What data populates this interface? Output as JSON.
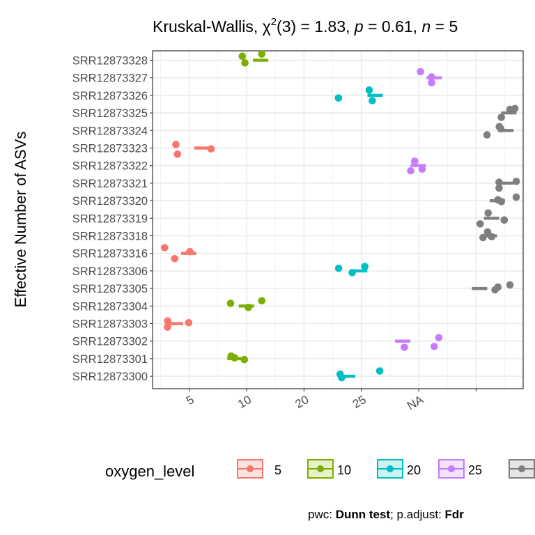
{
  "title": {
    "prefix": "Kruskal-Wallis, χ",
    "sup": "2",
    "middle1": "(3) = 1.83, ",
    "p_sym": "p",
    "middle2": " = 0.61, ",
    "n_sym": "n",
    "middle3": " = 5"
  },
  "caption": {
    "pwc_label": "pwc: ",
    "pwc_value": "Dunn test",
    "sep": "; p.adjust: ",
    "adjust_value": "Fdr"
  },
  "legend": {
    "title": "oxygen_level",
    "items": [
      {
        "label": "5",
        "color": "#F8766D",
        "fill": "#fde2df"
      },
      {
        "label": "10",
        "color": "#7CAE00",
        "fill": "#e7f0cc"
      },
      {
        "label": "20",
        "color": "#00BFC4",
        "fill": "#ccf2f3"
      },
      {
        "label": "25",
        "color": "#C77CFF",
        "fill": "#f2e3ff"
      },
      {
        "label": "",
        "color": "#7F7F7F",
        "fill": "#e5e5e5"
      }
    ]
  },
  "chart_data": {
    "type": "scatter",
    "ylabel": "Effective Number of ASVs",
    "xlabel": "",
    "x_tick_labels": [
      "5",
      "10",
      "20",
      "25",
      "NA"
    ],
    "categories": [
      "SRR12873328",
      "SRR12873327",
      "SRR12873326",
      "SRR12873325",
      "SRR12873324",
      "SRR12873323",
      "SRR12873322",
      "SRR12873321",
      "SRR12873320",
      "SRR12873319",
      "SRR12873318",
      "SRR12873316",
      "SRR12873306",
      "SRR12873305",
      "SRR12873304",
      "SRR12873303",
      "SRR12873302",
      "SRR12873301",
      "SRR12873300"
    ],
    "grid": true,
    "series": [
      {
        "name": "5",
        "color": "#F8766D",
        "rows": [
          {
            "sample": "SRR12873323",
            "group": "5",
            "points": [
              [
                3.83,
                -0.2
              ],
              [
                3.97,
                0.35
              ],
              [
                6.9,
                0.05
              ]
            ],
            "median": 6.1
          },
          {
            "sample": "SRR12873316",
            "group": "5",
            "points": [
              [
                3.73,
                0.3
              ],
              [
                2.85,
                -0.32
              ],
              [
                5.05,
                -0.1
              ]
            ],
            "median": 4.95
          },
          {
            "sample": "SRR12873303",
            "group": "5",
            "points": [
              [
                3.1,
                0.2
              ],
              [
                3.12,
                -0.15
              ],
              [
                4.95,
                -0.05
              ]
            ],
            "median": 3.8
          }
        ]
      },
      {
        "name": "10",
        "color": "#7CAE00",
        "rows": [
          {
            "sample": "SRR12873328",
            "group": "10",
            "points": [
              [
                9.85,
                0.15
              ],
              [
                9.62,
                -0.23
              ],
              [
                11.32,
                -0.35
              ]
            ],
            "median": 11.22
          },
          {
            "sample": "SRR12873304",
            "group": "10",
            "points": [
              [
                8.6,
                -0.15
              ],
              [
                10.15,
                0.08
              ],
              [
                11.32,
                -0.3
              ]
            ],
            "median": 9.98
          },
          {
            "sample": "SRR12873301",
            "group": "10",
            "points": [
              [
                9.8,
                0.05
              ],
              [
                8.65,
                -0.15
              ],
              [
                8.95,
                -0.05
              ]
            ],
            "median": 8.98
          }
        ]
      },
      {
        "name": "20",
        "color": "#00BFC4",
        "rows": [
          {
            "sample": "SRR12873326",
            "group": "20",
            "points": [
              [
                18.0,
                0.15
              ],
              [
                20.68,
                -0.3
              ],
              [
                20.95,
                0.3
              ]
            ],
            "median": 21.2
          },
          {
            "sample": "SRR12873306",
            "group": "20",
            "points": [
              [
                19.2,
                0.1
              ],
              [
                20.3,
                -0.25
              ],
              [
                18.02,
                -0.15
              ]
            ],
            "median": 19.85
          },
          {
            "sample": "SRR12873300",
            "group": "20",
            "points": [
              [
                18.28,
                0.08
              ],
              [
                18.15,
                -0.12
              ],
              [
                21.6,
                -0.3
              ]
            ],
            "median": 18.8
          }
        ]
      },
      {
        "name": "25",
        "color": "#C77CFF",
        "rows": [
          {
            "sample": "SRR12873327",
            "group": "25",
            "points": [
              [
                26.12,
                0.28
              ],
              [
                26.12,
                -0.05
              ],
              [
                25.15,
                -0.35
              ]
            ],
            "median": 26.35
          },
          {
            "sample": "SRR12873322",
            "group": "25",
            "points": [
              [
                24.3,
                0.3
              ],
              [
                25.3,
                0.2
              ],
              [
                24.65,
                -0.25
              ]
            ],
            "median": 24.95
          },
          {
            "sample": "SRR12873302",
            "group": "25",
            "points": [
              [
                23.75,
                0.35
              ],
              [
                26.35,
                0.3
              ],
              [
                26.75,
                -0.2
              ]
            ],
            "median": 23.6
          }
        ]
      },
      {
        "name": "NA",
        "color": "#7F7F7F",
        "rows": [
          {
            "sample": "SRR12873325",
            "group": "NA",
            "points": [
              [
                32.2,
                0.25
              ],
              [
                32.95,
                -0.2
              ],
              [
                33.38,
                -0.25
              ]
            ],
            "median": 32.85
          },
          {
            "sample": "SRR12873324",
            "group": "NA",
            "points": [
              [
                30.95,
                0.25
              ],
              [
                32.02,
                -0.22
              ],
              [
                32.15,
                -0.1
              ]
            ],
            "median": 32.6
          },
          {
            "sample": "SRR12873321",
            "group": "NA",
            "points": [
              [
                32.0,
                0.28
              ],
              [
                32.0,
                -0.05
              ],
              [
                33.5,
                -0.1
              ]
            ],
            "median": 32.6
          },
          {
            "sample": "SRR12873320",
            "group": "NA",
            "points": [
              [
                31.9,
                -0.05
              ],
              [
                32.2,
                0.05
              ],
              [
                33.5,
                -0.2
              ]
            ],
            "median": 31.85
          },
          {
            "sample": "SRR12873319",
            "group": "NA",
            "points": [
              [
                30.35,
                0.32
              ],
              [
                31.05,
                -0.3
              ],
              [
                32.45,
                0.1
              ]
            ],
            "median": 31.35
          },
          {
            "sample": "SRR12873318",
            "group": "NA",
            "points": [
              [
                30.6,
                0.1
              ],
              [
                31.0,
                -0.22
              ],
              [
                31.35,
                0.05
              ]
            ],
            "median": 31.15
          },
          {
            "sample": "SRR12873305",
            "group": "NA",
            "points": [
              [
                31.65,
                0.08
              ],
              [
                31.9,
                -0.08
              ],
              [
                32.95,
                -0.2
              ]
            ],
            "median": 30.3
          }
        ]
      }
    ]
  }
}
